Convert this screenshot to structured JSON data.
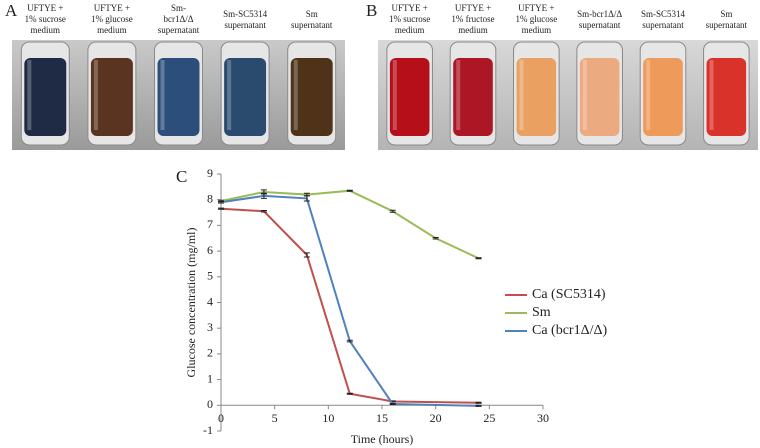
{
  "panels": [
    {
      "label": "A",
      "tubes": [
        {
          "caption": [
            "UFTYE +",
            "1% sucrose",
            "medium"
          ],
          "color": "#1f2a44"
        },
        {
          "caption": [
            "UFTYE +",
            "1% glucose",
            "medium"
          ],
          "color": "#5a3420"
        },
        {
          "caption": [
            "Sm-",
            "bcr1Δ/Δ",
            "supernatant"
          ],
          "color": "#2b4f7a"
        },
        {
          "caption": [
            "Sm-SC5314",
            "supernatant"
          ],
          "color": "#2a4a6e"
        },
        {
          "caption": [
            "Sm",
            "supernatant"
          ],
          "color": "#4e3318"
        }
      ]
    },
    {
      "label": "B",
      "tubes": [
        {
          "caption": [
            "UFTYE +",
            "1% sucrose",
            "medium"
          ],
          "color": "#b5101a"
        },
        {
          "caption": [
            "UFTYE +",
            "1% fructose",
            "medium"
          ],
          "color": "#ad1624"
        },
        {
          "caption": [
            "UFTYE +",
            "1% glucose",
            "medium"
          ],
          "color": "#e9a060"
        },
        {
          "caption": [
            "Sm-bcr1Δ/Δ",
            "supernatant"
          ],
          "color": "#ecaa80"
        },
        {
          "caption": [
            "Sm-SC5314",
            "supernatant"
          ],
          "color": "#ee9a5a"
        },
        {
          "caption": [
            "Sm",
            "supernatant"
          ],
          "color": "#d8322a"
        }
      ]
    }
  ],
  "chart_label": "C",
  "chart_data": {
    "type": "line",
    "xlabel": "Time (hours)",
    "ylabel": "Glucose concentration (mg/ml)",
    "xlim": [
      0,
      30
    ],
    "xticks": [
      0,
      5,
      10,
      15,
      20,
      25,
      30
    ],
    "ylim": [
      -1,
      9
    ],
    "yticks": [
      -1,
      0,
      1,
      2,
      3,
      4,
      5,
      6,
      7,
      8,
      9
    ],
    "series": [
      {
        "name": "Ca (SC5314)",
        "color": "#c0504d",
        "x": [
          0,
          4,
          8,
          12,
          16,
          24
        ],
        "values": [
          7.65,
          7.55,
          5.85,
          0.45,
          0.15,
          0.1
        ],
        "errors": [
          0.02,
          0.03,
          0.08,
          0.02,
          0.02,
          0.02
        ]
      },
      {
        "name": "Sm",
        "color": "#9bbb59",
        "x": [
          0,
          4,
          8,
          12,
          16,
          20,
          24
        ],
        "values": [
          7.95,
          8.3,
          8.2,
          8.35,
          7.55,
          6.5,
          5.72
        ],
        "errors": [
          0.03,
          0.08,
          0.05,
          0.02,
          0.04,
          0.03,
          0.02
        ]
      },
      {
        "name": "Ca (bcr1Δ/Δ)",
        "color": "#4f81bd",
        "x": [
          0,
          4,
          8,
          12,
          16,
          24
        ],
        "values": [
          7.9,
          8.15,
          8.05,
          2.5,
          0.05,
          -0.02
        ],
        "errors": [
          0.03,
          0.1,
          0.1,
          0.03,
          0.02,
          0.02
        ]
      }
    ]
  }
}
